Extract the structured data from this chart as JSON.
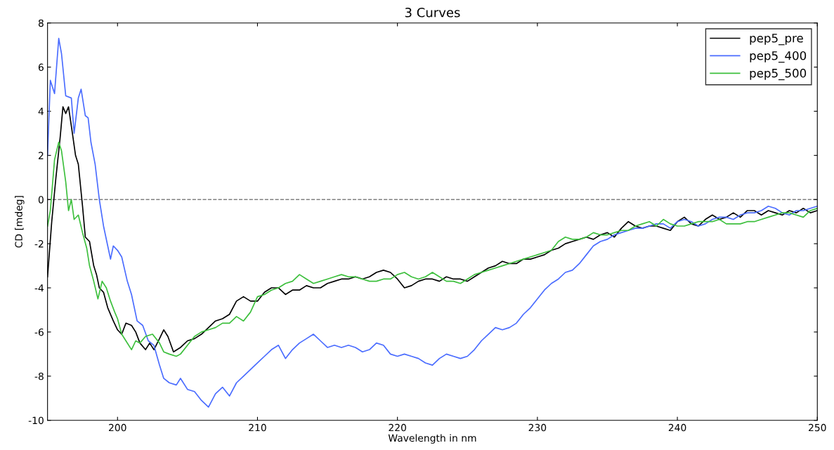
{
  "chart_data": {
    "type": "line",
    "title": "3 Curves",
    "xlabel": "Wavelength in nm",
    "ylabel": "CD [mdeg]",
    "xlim": [
      195,
      250
    ],
    "xticks": [
      200,
      210,
      220,
      230,
      240,
      250
    ],
    "ylim": [
      -10,
      8
    ],
    "yticks": [
      -10,
      -8,
      -6,
      -4,
      -2,
      0,
      2,
      4,
      6,
      8
    ],
    "grid": false,
    "legend": "top right",
    "line_style": "solid",
    "marker": "none",
    "ref_lines": [
      {
        "axis": "y",
        "value": 0,
        "color": "#808080",
        "line_style": "dashed"
      }
    ],
    "series": [
      {
        "name": "pep5_pre",
        "color": "#000000",
        "x": [
          195,
          195.3,
          195.6,
          195.9,
          196.1,
          196.3,
          196.5,
          196.8,
          197,
          197.2,
          197.5,
          197.7,
          198,
          198.3,
          198.5,
          198.7,
          199,
          199.3,
          199.7,
          200,
          200.3,
          200.6,
          201,
          201.3,
          201.6,
          202,
          202.3,
          202.6,
          203,
          203.3,
          203.6,
          204,
          204.5,
          205,
          205.5,
          206,
          206.5,
          207,
          207.5,
          208,
          208.5,
          209,
          209.5,
          210,
          210.5,
          211,
          211.5,
          212,
          212.5,
          213,
          213.5,
          214,
          214.5,
          215,
          215.5,
          216,
          216.5,
          217,
          217.5,
          218,
          218.5,
          219,
          219.5,
          220,
          220.5,
          221,
          221.5,
          222,
          222.5,
          223,
          223.5,
          224,
          224.5,
          225,
          225.5,
          226,
          226.5,
          227,
          227.5,
          228,
          228.5,
          229,
          229.5,
          230,
          230.5,
          231,
          231.5,
          232,
          232.5,
          233,
          233.5,
          234,
          234.5,
          235,
          235.5,
          236,
          236.5,
          237,
          237.5,
          238,
          238.5,
          239,
          239.5,
          240,
          240.5,
          241,
          241.5,
          242,
          242.5,
          243,
          243.5,
          244,
          244.5,
          245,
          245.5,
          246,
          246.5,
          247,
          247.5,
          248,
          248.5,
          249,
          249.5,
          250
        ],
        "values": [
          -3.5,
          -1.0,
          1.0,
          2.8,
          4.2,
          3.9,
          4.2,
          2.9,
          2.0,
          1.6,
          -0.3,
          -1.7,
          -1.9,
          -3.0,
          -3.4,
          -4.0,
          -4.2,
          -4.9,
          -5.5,
          -5.9,
          -6.1,
          -5.6,
          -5.7,
          -6.0,
          -6.5,
          -6.8,
          -6.5,
          -6.8,
          -6.3,
          -5.9,
          -6.2,
          -6.9,
          -6.7,
          -6.4,
          -6.3,
          -6.1,
          -5.8,
          -5.5,
          -5.4,
          -5.2,
          -4.6,
          -4.4,
          -4.6,
          -4.6,
          -4.2,
          -4.0,
          -4.0,
          -4.3,
          -4.1,
          -4.1,
          -3.9,
          -4.0,
          -4.0,
          -3.8,
          -3.7,
          -3.6,
          -3.6,
          -3.5,
          -3.6,
          -3.5,
          -3.3,
          -3.2,
          -3.3,
          -3.6,
          -4.0,
          -3.9,
          -3.7,
          -3.6,
          -3.6,
          -3.7,
          -3.5,
          -3.6,
          -3.6,
          -3.7,
          -3.5,
          -3.3,
          -3.1,
          -3.0,
          -2.8,
          -2.9,
          -2.9,
          -2.7,
          -2.7,
          -2.6,
          -2.5,
          -2.3,
          -2.2,
          -2.0,
          -1.9,
          -1.8,
          -1.7,
          -1.8,
          -1.6,
          -1.5,
          -1.7,
          -1.3,
          -1.0,
          -1.2,
          -1.3,
          -1.2,
          -1.2,
          -1.3,
          -1.4,
          -1.0,
          -0.8,
          -1.1,
          -1.2,
          -0.9,
          -0.7,
          -0.9,
          -0.8,
          -0.6,
          -0.8,
          -0.5,
          -0.5,
          -0.7,
          -0.5,
          -0.6,
          -0.7,
          -0.5,
          -0.6,
          -0.4,
          -0.6,
          -0.5
        ]
      },
      {
        "name": "pep5_400",
        "color": "#4a6cff",
        "x": [
          195,
          195.2,
          195.5,
          195.8,
          196,
          196.3,
          196.7,
          196.9,
          197.2,
          197.4,
          197.7,
          197.9,
          198.1,
          198.4,
          198.7,
          199,
          199.3,
          199.5,
          199.7,
          200,
          200.3,
          200.7,
          201,
          201.4,
          201.8,
          202.2,
          202.6,
          203,
          203.3,
          203.7,
          204.2,
          204.5,
          205,
          205.5,
          206,
          206.5,
          207,
          207.5,
          208,
          208.5,
          209,
          209.5,
          210,
          210.5,
          211,
          211.5,
          212,
          212.5,
          213,
          213.5,
          214,
          214.5,
          215,
          215.5,
          216,
          216.5,
          217,
          217.5,
          218,
          218.5,
          219,
          219.5,
          220,
          220.5,
          221,
          221.5,
          222,
          222.5,
          223,
          223.5,
          224,
          224.5,
          225,
          225.5,
          226,
          226.5,
          227,
          227.5,
          228,
          228.5,
          229,
          229.5,
          230,
          230.5,
          231,
          231.5,
          232,
          232.5,
          233,
          233.5,
          234,
          234.5,
          235,
          235.5,
          236,
          236.5,
          237,
          237.5,
          238,
          238.5,
          239,
          239.5,
          240,
          240.5,
          241,
          241.5,
          242,
          242.5,
          243,
          243.5,
          244,
          244.5,
          245,
          245.5,
          246,
          246.5,
          247,
          247.5,
          248,
          248.5,
          249,
          249.5,
          250
        ],
        "values": [
          2.0,
          5.4,
          4.8,
          7.3,
          6.6,
          4.7,
          4.6,
          3.0,
          4.6,
          5.0,
          3.8,
          3.7,
          2.6,
          1.6,
          0.0,
          -1.2,
          -2.1,
          -2.7,
          -2.1,
          -2.3,
          -2.6,
          -3.7,
          -4.3,
          -5.5,
          -5.7,
          -6.4,
          -6.6,
          -7.5,
          -8.1,
          -8.3,
          -8.4,
          -8.1,
          -8.6,
          -8.7,
          -9.1,
          -9.4,
          -8.8,
          -8.5,
          -8.9,
          -8.3,
          -8.0,
          -7.7,
          -7.4,
          -7.1,
          -6.8,
          -6.6,
          -7.2,
          -6.8,
          -6.5,
          -6.3,
          -6.1,
          -6.4,
          -6.7,
          -6.6,
          -6.7,
          -6.6,
          -6.7,
          -6.9,
          -6.8,
          -6.5,
          -6.6,
          -7.0,
          -7.1,
          -7.0,
          -7.1,
          -7.2,
          -7.4,
          -7.5,
          -7.2,
          -7.0,
          -7.1,
          -7.2,
          -7.1,
          -6.8,
          -6.4,
          -6.1,
          -5.8,
          -5.9,
          -5.8,
          -5.6,
          -5.2,
          -4.9,
          -4.5,
          -4.1,
          -3.8,
          -3.6,
          -3.3,
          -3.2,
          -2.9,
          -2.5,
          -2.1,
          -1.9,
          -1.8,
          -1.6,
          -1.5,
          -1.4,
          -1.3,
          -1.3,
          -1.2,
          -1.1,
          -1.1,
          -1.3,
          -1.0,
          -0.9,
          -1.0,
          -1.2,
          -1.1,
          -0.9,
          -0.8,
          -0.8,
          -0.9,
          -0.7,
          -0.6,
          -0.6,
          -0.5,
          -0.3,
          -0.4,
          -0.6,
          -0.7,
          -0.5,
          -0.5,
          -0.4,
          -0.3
        ]
      },
      {
        "name": "pep5_500",
        "color": "#3cbf3c",
        "x": [
          195,
          195.2,
          195.5,
          195.8,
          196,
          196.3,
          196.5,
          196.7,
          196.9,
          197.2,
          197.5,
          197.8,
          198,
          198.3,
          198.6,
          198.9,
          199.2,
          199.5,
          199.8,
          200,
          200.3,
          200.6,
          201,
          201.3,
          201.6,
          202,
          202.5,
          203,
          203.3,
          203.7,
          204.2,
          204.5,
          205,
          205.5,
          206,
          206.5,
          207,
          207.5,
          208,
          208.5,
          209,
          209.5,
          210,
          210.5,
          211,
          211.5,
          212,
          212.5,
          213,
          213.5,
          214,
          214.5,
          215,
          215.5,
          216,
          216.5,
          217,
          217.5,
          218,
          218.5,
          219,
          219.5,
          220,
          220.5,
          221,
          221.5,
          222,
          222.5,
          223,
          223.5,
          224,
          224.5,
          225,
          225.5,
          226,
          226.5,
          227,
          227.5,
          228,
          228.5,
          229,
          229.5,
          230,
          230.5,
          231,
          231.5,
          232,
          232.5,
          233,
          233.5,
          234,
          234.5,
          235,
          235.5,
          236,
          236.5,
          237,
          237.5,
          238,
          238.5,
          239,
          239.5,
          240,
          240.5,
          241,
          241.5,
          242,
          242.5,
          243,
          243.5,
          244,
          244.5,
          245,
          245.5,
          246,
          246.5,
          247,
          247.5,
          248,
          248.5,
          249,
          249.5,
          250
        ],
        "values": [
          -1.2,
          -0.5,
          1.8,
          2.6,
          2.2,
          0.8,
          -0.5,
          0.0,
          -0.9,
          -0.7,
          -1.5,
          -2.2,
          -3.0,
          -3.7,
          -4.5,
          -3.7,
          -4.0,
          -4.6,
          -5.1,
          -5.4,
          -6.1,
          -6.4,
          -6.8,
          -6.4,
          -6.5,
          -6.2,
          -6.1,
          -6.5,
          -6.9,
          -7.0,
          -7.1,
          -7.0,
          -6.6,
          -6.2,
          -6.0,
          -5.9,
          -5.8,
          -5.6,
          -5.6,
          -5.3,
          -5.5,
          -5.1,
          -4.4,
          -4.3,
          -4.1,
          -4.0,
          -3.8,
          -3.7,
          -3.4,
          -3.6,
          -3.8,
          -3.7,
          -3.6,
          -3.5,
          -3.4,
          -3.5,
          -3.5,
          -3.6,
          -3.7,
          -3.7,
          -3.6,
          -3.6,
          -3.4,
          -3.3,
          -3.5,
          -3.6,
          -3.5,
          -3.3,
          -3.5,
          -3.7,
          -3.7,
          -3.8,
          -3.6,
          -3.4,
          -3.3,
          -3.2,
          -3.1,
          -3.0,
          -2.9,
          -2.8,
          -2.7,
          -2.6,
          -2.5,
          -2.4,
          -2.3,
          -1.9,
          -1.7,
          -1.8,
          -1.8,
          -1.7,
          -1.5,
          -1.6,
          -1.6,
          -1.5,
          -1.4,
          -1.4,
          -1.2,
          -1.1,
          -1.0,
          -1.2,
          -0.9,
          -1.1,
          -1.2,
          -1.2,
          -1.1,
          -1.0,
          -1.0,
          -1.0,
          -0.9,
          -1.1,
          -1.1,
          -1.1,
          -1.0,
          -1.0,
          -0.9,
          -0.8,
          -0.7,
          -0.6,
          -0.6,
          -0.7,
          -0.8,
          -0.5,
          -0.4
        ]
      }
    ]
  }
}
